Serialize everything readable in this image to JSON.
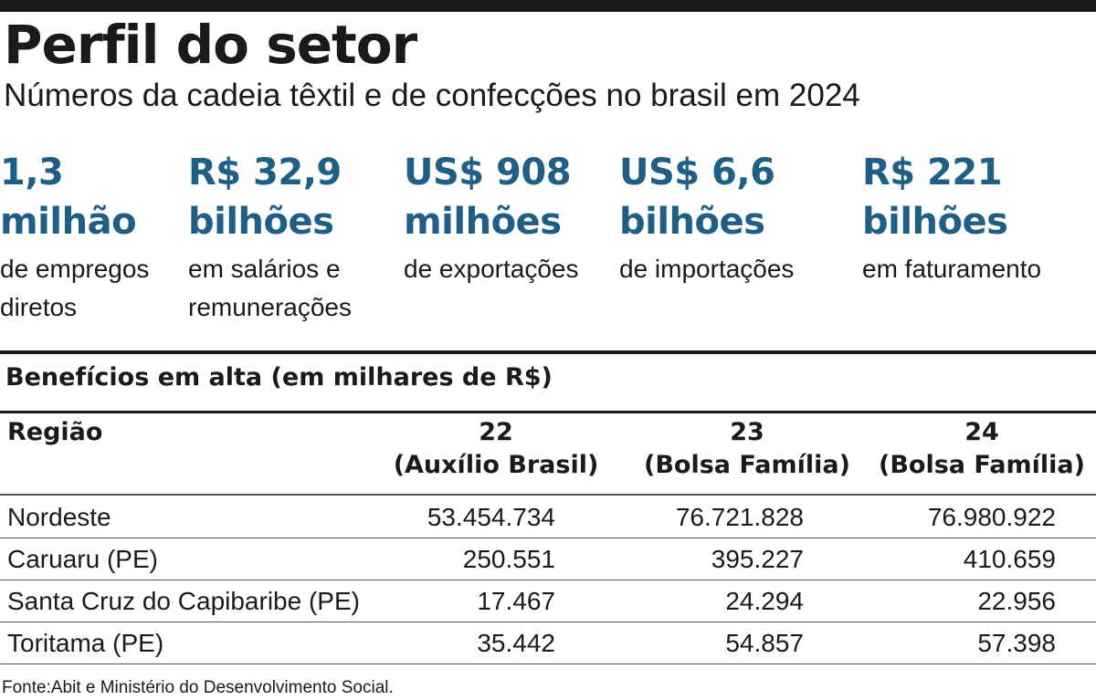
{
  "title": "Perfil do setor",
  "subtitle": "Números da cadeia têxtil e de confecções no brasil em 2024",
  "stats": [
    {
      "value_line1": "1,3",
      "value_line2": "milhão",
      "desc_line1": "de empregos",
      "desc_line2": "diretos"
    },
    {
      "value_line1": "R$ 32,9",
      "value_line2": "bilhões",
      "desc_line1": "em salários e",
      "desc_line2": "remunerações"
    },
    {
      "value_line1": "US$ 908",
      "value_line2": "milhões",
      "desc_line1": "de exportações",
      "desc_line2": ""
    },
    {
      "value_line1": "US$ 6,6",
      "value_line2": "bilhões",
      "desc_line1": "de importações",
      "desc_line2": ""
    },
    {
      "value_line1": "R$ 221",
      "value_line2": "bilhões",
      "desc_line1": "em faturamento",
      "desc_line2": ""
    }
  ],
  "table": {
    "title": "Benefícios em alta (em milhares de R$)",
    "header_region": "Região",
    "columns": [
      {
        "year": "22",
        "program": "(Auxílio Brasil)"
      },
      {
        "year": "23",
        "program": "(Bolsa Família)"
      },
      {
        "year": "24",
        "program": "(Bolsa Família)"
      }
    ],
    "rows": [
      {
        "region": "Nordeste",
        "values": [
          "53.454.734",
          "76.721.828",
          "76.980.922"
        ]
      },
      {
        "region": "Caruaru (PE)",
        "values": [
          "250.551",
          "395.227",
          "410.659"
        ]
      },
      {
        "region": "Santa Cruz do Capibaribe (PE)",
        "values": [
          "17.467",
          "24.294",
          "22.956"
        ]
      },
      {
        "region": "Toritama (PE)",
        "values": [
          "35.442",
          "54.857",
          "57.398"
        ]
      }
    ]
  },
  "source": "Fonte:Abit e Ministério do Desenvolvimento Social.",
  "colors": {
    "accent": "#1f5f86",
    "text": "#1a1a1a"
  }
}
